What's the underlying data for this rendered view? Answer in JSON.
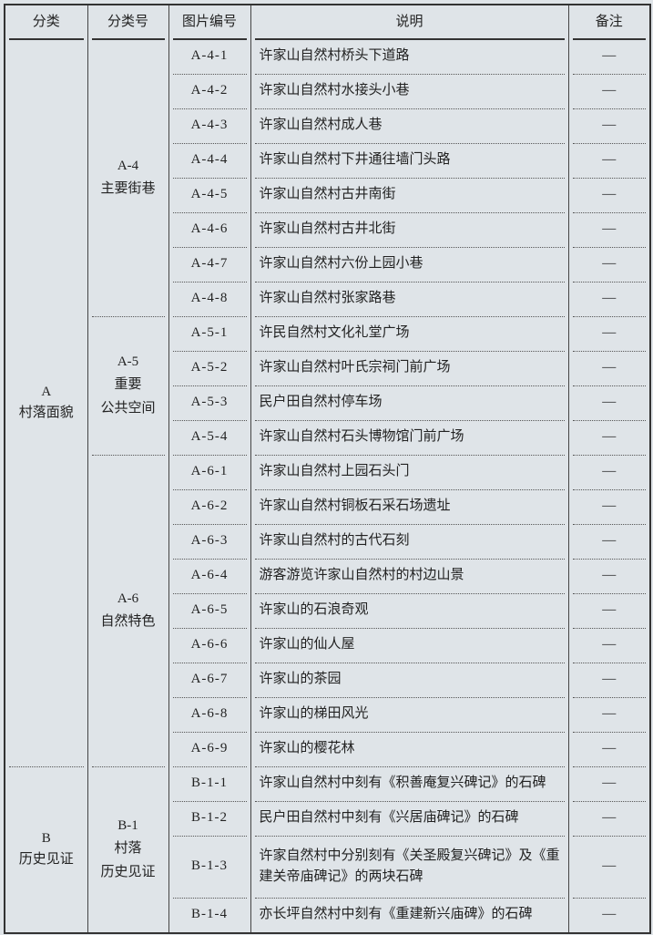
{
  "headers": {
    "category": "分类",
    "sub_code": "分类号",
    "pic_code": "图片编号",
    "desc": "说明",
    "note": "备注"
  },
  "categories": [
    {
      "code": "A",
      "name": "村落面貌"
    },
    {
      "code": "B",
      "name": "历史见证"
    }
  ],
  "subcategories": [
    {
      "code": "A-4",
      "name": "主要街巷"
    },
    {
      "code": "A-5",
      "name": "重要",
      "name2": "公共空间"
    },
    {
      "code": "A-6",
      "name": "自然特色"
    },
    {
      "code": "B-1",
      "name": "村落",
      "name2": "历史见证"
    }
  ],
  "rows": [
    {
      "code": "A-4-1",
      "desc": "许家山自然村桥头下道路",
      "note": "—"
    },
    {
      "code": "A-4-2",
      "desc": "许家山自然村水接头小巷",
      "note": "—"
    },
    {
      "code": "A-4-3",
      "desc": "许家山自然村成人巷",
      "note": "—"
    },
    {
      "code": "A-4-4",
      "desc": "许家山自然村下井通往墙门头路",
      "note": "—"
    },
    {
      "code": "A-4-5",
      "desc": "许家山自然村古井南街",
      "note": "—"
    },
    {
      "code": "A-4-6",
      "desc": "许家山自然村古井北街",
      "note": "—"
    },
    {
      "code": "A-4-7",
      "desc": "许家山自然村六份上园小巷",
      "note": "—"
    },
    {
      "code": "A-4-8",
      "desc": "许家山自然村张家路巷",
      "note": "—"
    },
    {
      "code": "A-5-1",
      "desc": "许民自然村文化礼堂广场",
      "note": "—"
    },
    {
      "code": "A-5-2",
      "desc": "许家山自然村叶氏宗祠门前广场",
      "note": "—"
    },
    {
      "code": "A-5-3",
      "desc": "民户田自然村停车场",
      "note": "—"
    },
    {
      "code": "A-5-4",
      "desc": "许家山自然村石头博物馆门前广场",
      "note": "—"
    },
    {
      "code": "A-6-1",
      "desc": "许家山自然村上园石头门",
      "note": "—"
    },
    {
      "code": "A-6-2",
      "desc": "许家山自然村铜板石采石场遗址",
      "note": "—"
    },
    {
      "code": "A-6-3",
      "desc": "许家山自然村的古代石刻",
      "note": "—"
    },
    {
      "code": "A-6-4",
      "desc": "游客游览许家山自然村的村边山景",
      "note": "—"
    },
    {
      "code": "A-6-5",
      "desc": "许家山的石浪奇观",
      "note": "—"
    },
    {
      "code": "A-6-6",
      "desc": "许家山的仙人屋",
      "note": "—"
    },
    {
      "code": "A-6-7",
      "desc": "许家山的茶园",
      "note": "—"
    },
    {
      "code": "A-6-8",
      "desc": "许家山的梯田风光",
      "note": "—"
    },
    {
      "code": "A-6-9",
      "desc": "许家山的樱花林",
      "note": "—"
    },
    {
      "code": "B-1-1",
      "desc": "许家山自然村中刻有《积善庵复兴碑记》的石碑",
      "note": "—"
    },
    {
      "code": "B-1-2",
      "desc": "民户田自然村中刻有《兴居庙碑记》的石碑",
      "note": "—"
    },
    {
      "code": "B-1-3",
      "desc": "许家自然村中分别刻有《关圣殿复兴碑记》及《重建关帝庙碑记》的两块石碑",
      "note": "—"
    },
    {
      "code": "B-1-4",
      "desc": "亦长坪自然村中刻有《重建新兴庙碑》的石碑",
      "note": "—"
    }
  ]
}
